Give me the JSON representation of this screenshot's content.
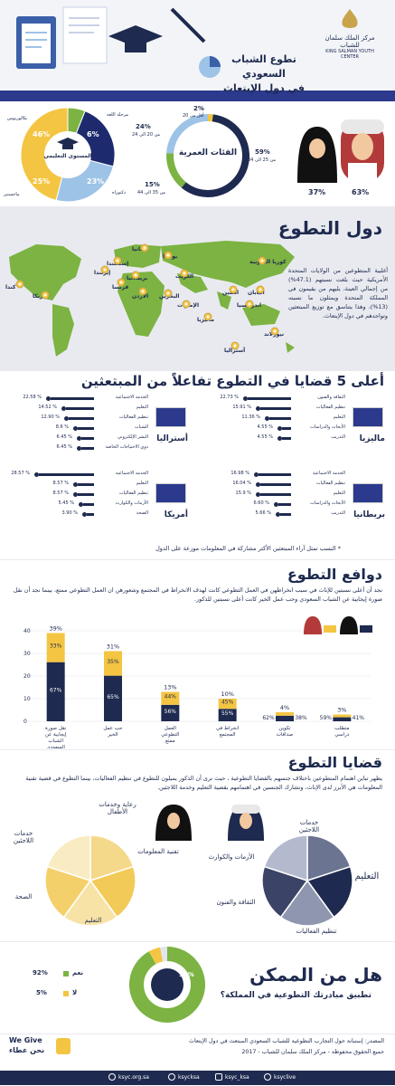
{
  "header": {
    "title_line1": "تطوع الشباب السعودي",
    "title_line2": "في دول الإبتعاث",
    "logo_ar": "مركز الملك سلمان للشباب",
    "logo_en": "KING SALMAN YOUTH CENTER"
  },
  "demographics": {
    "gender": {
      "male_pct": "63%",
      "female_pct": "37%"
    },
    "age": {
      "title": "الفئات العمرية",
      "groups": [
        {
          "pct": "2%",
          "label": "أقل من 20",
          "value": 2
        },
        {
          "pct": "59%",
          "label": "من 25 الى 34",
          "value": 59
        },
        {
          "pct": "15%",
          "label": "من 35 الى 44",
          "value": 15
        },
        {
          "pct": "24%",
          "label": "من 20 الى 24",
          "value": 24
        }
      ]
    },
    "education": {
      "title": "المستوى التعليمي",
      "groups": [
        {
          "pct": "6%",
          "label": "مرحلة اللغة",
          "value": 6,
          "color": "#7cb342"
        },
        {
          "pct": "23%",
          "label": "دكتوراه",
          "value": 23,
          "color": "#1e2a6e"
        },
        {
          "pct": "25%",
          "label": "ماجستير",
          "value": 25,
          "color": "#9dc3e6"
        },
        {
          "pct": "46%",
          "label": "بكالوريوس",
          "value": 46,
          "color": "#f4c542"
        }
      ]
    }
  },
  "countries": {
    "title": "دول التطوع",
    "map_labels": [
      "ألمانيا",
      "بولندا",
      "إسكتلندا",
      "إيرلندا",
      "بريطانيا",
      "فرنسا",
      "الأردن",
      "البحرين",
      "الكويت",
      "الإمارات",
      "كندا",
      "أمريكا",
      "كوريا الجنوبية",
      "الصين",
      "اليابان",
      "اندونيسيا",
      "ماليزيا",
      "أستراليا",
      "نيوزلاند"
    ],
    "note": "أغلبية المتطوعين من الولايات المتحدة الأمريكية حيث بلغت نسبتهم (47.1%) من إجمالي العينة، يليهم من يقيمون في المملكة المتحدة ويمثلون ما نسبته (13%)، وهذا يتناسق مع توزيع المبتعثين وتواجدهم في دول الإبتعاث."
  },
  "top_issues": {
    "title": "أعلى 5 قضايا في التطوع تفاعلاً من المبتعثين",
    "footnote": "* النسب تمثل آراء المبتعثين الأكثر مشاركة في المعلومات موزعة على الدول",
    "blocks": [
      {
        "country": "ماليزيا",
        "items": [
          {
            "label": "الثقافة والفنون",
            "pct": "22.73 %",
            "value": 22.73
          },
          {
            "label": "تنظيم الفعاليات",
            "pct": "15.91 %",
            "value": 15.91
          },
          {
            "label": "التعليم",
            "pct": "11.36 %",
            "value": 11.36
          },
          {
            "label": "الأبحاث والدراسات",
            "pct": "4.55 %",
            "value": 4.55
          },
          {
            "label": "التدريب",
            "pct": "4.55 %",
            "value": 4.55
          }
        ]
      },
      {
        "country": "أستراليا",
        "items": [
          {
            "label": "الخدمة الاجتماعية",
            "pct": "22.58 %",
            "value": 22.58
          },
          {
            "label": "التعليم",
            "pct": "14.52 %",
            "value": 14.52
          },
          {
            "label": "تنظيم الفعاليات",
            "pct": "12.90 %",
            "value": 12.9
          },
          {
            "label": "الشباب",
            "pct": "8.6 %",
            "value": 8.6
          },
          {
            "label": "النشر الإلكتروني",
            "pct": "6.45 %",
            "value": 6.45
          },
          {
            "label": "ذوي الاحتياجات الخاصة",
            "pct": "6.45 %",
            "value": 6.45
          }
        ]
      },
      {
        "country": "بريطانيا",
        "items": [
          {
            "label": "الخدمة الاجتماعية",
            "pct": "16.98 %",
            "value": 16.98
          },
          {
            "label": "تنظيم الفعاليات",
            "pct": "16.04 %",
            "value": 16.04
          },
          {
            "label": "التعليم",
            "pct": "15.9 %",
            "value": 15.9
          },
          {
            "label": "الأبحاث والدراسات",
            "pct": "6.60 %",
            "value": 6.6
          },
          {
            "label": "التدريب",
            "pct": "5.66 %",
            "value": 5.66
          }
        ]
      },
      {
        "country": "أمريكا",
        "items": [
          {
            "label": "الخدمة الاجتماعية",
            "pct": "28.57 %",
            "value": 28.57
          },
          {
            "label": "التعليم",
            "pct": "8.57 %",
            "value": 8.57
          },
          {
            "label": "تنظيم الفعاليات",
            "pct": "8.57 %",
            "value": 8.57
          },
          {
            "label": "الأزمات والكوارث",
            "pct": "5.45 %",
            "value": 5.45
          },
          {
            "label": "الصحة",
            "pct": "3.90 %",
            "value": 3.9
          }
        ]
      }
    ]
  },
  "motives": {
    "title": "دوافع التطوع",
    "text": "نجد أن أعلى نسبتين للإناث في سبب انخراطهن في العمل التطوعي كانت لهدف الانخراط في المجتمع وشعورهن ان العمل التطوعي ممتع، بينما نجد أن نقل صورة إيجابية عن الشباب السعودي وحب عمل الخير كانت أعلى نسبتين للذكور.",
    "chart_data": {
      "type": "bar",
      "categories": [
        "نقل صورة إيجابية عن الشباب السعودي",
        "حب عمل الخير",
        "العمل التطوعي ممتع",
        "انخراط في المجتمع",
        "تكوين صداقات",
        "متطلب دراسي"
      ],
      "series": [
        {
          "values": [
            67,
            65,
            56,
            55,
            62,
            59
          ],
          "labels": [
            "67%",
            "65%",
            "56%",
            "55%",
            "62%",
            "59%"
          ],
          "color": "#1e2a4f"
        },
        {
          "values": [
            33,
            35,
            44,
            45,
            38,
            41
          ],
          "labels": [
            "33%",
            "35%",
            "44%",
            "45%",
            "38%",
            "41%"
          ],
          "color": "#f4c542"
        }
      ],
      "totals": [
        39,
        31,
        13,
        10,
        4,
        3
      ],
      "total_labels": [
        "39%",
        "31%",
        "13%",
        "10%",
        "4%",
        "3%"
      ],
      "ylim": [
        0,
        40
      ],
      "yticks": [
        "0",
        "10",
        "20",
        "30",
        "40"
      ]
    }
  },
  "issues": {
    "title": "قضايا التطوع",
    "text": "يظهر تباين اهتمام المتطوعين باختلاف جنسهم بالقضايا التطوعية ، حيث نرى أن الذكور يميلون للتطوع في تنظيم الفعاليات، بينما التطوع في قضية تقنية المعلومات هي الأبرز لدى الإناث، وتشارك الجنسين في اهتمامهم بقضية التعليم وخدمة اللاجئين.",
    "female_pie": {
      "labels": [
        "رعاية وخدمات الأطفال",
        "تقنية المعلومات",
        "التعليم",
        "الصحة",
        "خدمات اللاجئين"
      ]
    },
    "male_pie": {
      "labels": [
        "خدمات اللاجئين",
        "التعليم",
        "تنظيم الفعاليات",
        "الثقافة والفنون",
        "الأزمات والكوارث"
      ]
    }
  },
  "possible": {
    "title": "هل من الممكن",
    "subtitle": "تطبيق مبادرتك التطوعية في المملكة؟",
    "center_pct": "92%",
    "yes_label": "نعم",
    "yes_pct": "92%",
    "yes_value": 92,
    "no_label": "لا",
    "no_pct": "5%",
    "no_value": 5
  },
  "footer": {
    "source": "المصدر: إستبانة حول التجارب التطوعية للشباب السعودي المبتعث في دول الإبتعاث",
    "rights": "جميع الحقوق محفوظة - مركز الملك سلمان للشباب - 2017",
    "brand_en": "We Give",
    "brand_ar": "نحن عطاء",
    "social": [
      "ksyc.org.sa",
      "ksycksa",
      "ksyc_ksa",
      "ksyclive"
    ]
  },
  "colors": {
    "navy": "#1e2a4f",
    "yellow": "#f4c542",
    "green": "#7cb342",
    "light_blue": "#9dc3e6"
  }
}
